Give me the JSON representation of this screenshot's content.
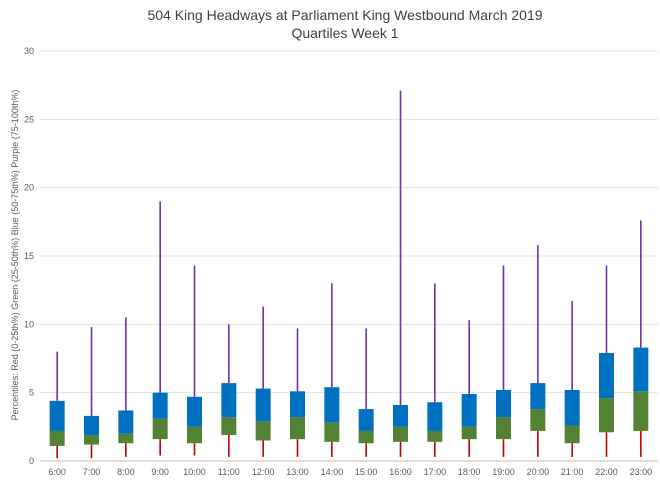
{
  "chart_data": {
    "type": "bar",
    "subtype": "stacked-quartile",
    "title": "504 King Headways at Parliament King Westbound March 2019",
    "subtitle": "Quartiles Week 1",
    "xlabel": "",
    "ylabel": "Percentiles: Red (0-25th%)  Green (25-50th%)  Blue (50-75th%)  Purple (75-100th%)",
    "ylim": [
      0,
      30
    ],
    "yticks": [
      0,
      5,
      10,
      15,
      20,
      25,
      30
    ],
    "grid": true,
    "legend": "none",
    "categories": [
      "6:00",
      "7:00",
      "8:00",
      "9:00",
      "10:00",
      "11:00",
      "12:00",
      "13:00",
      "14:00",
      "15:00",
      "16:00",
      "17:00",
      "18:00",
      "19:00",
      "20:00",
      "21:00",
      "22:00",
      "23:00"
    ],
    "series": [
      {
        "color": "#c00000",
        "min": [
          0.2,
          0.2,
          0.3,
          0.4,
          0.4,
          0.3,
          0.3,
          0.3,
          0.3,
          0.3,
          0.3,
          0.3,
          0.3,
          0.3,
          0.3,
          0.3,
          0.3,
          0.3
        ]
      },
      {
        "color": "#548235",
        "q1": [
          1.1,
          1.2,
          1.3,
          1.6,
          1.3,
          1.9,
          1.5,
          1.6,
          1.4,
          1.3,
          1.4,
          1.4,
          1.6,
          1.6,
          2.2,
          1.3,
          2.1,
          2.2
        ]
      },
      {
        "color": "#0070c0",
        "median": [
          2.2,
          1.9,
          2.0,
          3.1,
          2.5,
          3.2,
          2.9,
          3.2,
          2.8,
          2.2,
          2.5,
          2.2,
          2.5,
          3.2,
          3.8,
          2.6,
          4.6,
          5.1
        ]
      },
      {
        "color": "#7030a0",
        "q3": [
          4.4,
          3.3,
          3.7,
          5.0,
          4.7,
          5.7,
          5.3,
          5.1,
          5.4,
          3.8,
          4.1,
          4.3,
          4.9,
          5.2,
          5.7,
          5.2,
          7.9,
          8.3
        ]
      },
      {
        "color": "#7030a0",
        "max": [
          8.0,
          9.8,
          10.5,
          19.0,
          14.3,
          10.0,
          11.3,
          9.7,
          13.0,
          9.7,
          27.1,
          13.0,
          10.3,
          14.3,
          15.8,
          11.7,
          14.3,
          17.6
        ]
      }
    ]
  }
}
